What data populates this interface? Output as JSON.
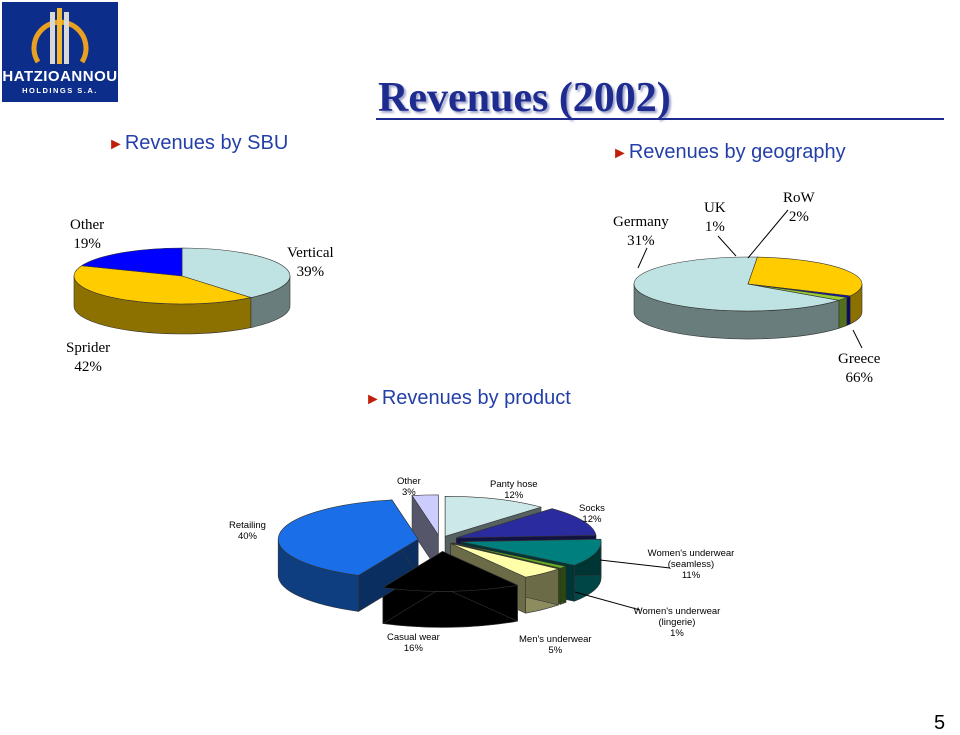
{
  "page": {
    "title": "Revenues (2002)",
    "page_number": "5",
    "logo": {
      "line1": "HATZIOANNOU",
      "line2": "HOLDINGS S.A."
    }
  },
  "sections": {
    "sbu": "Revenues by SBU",
    "geography": "Revenues by geography",
    "product": "Revenues by product"
  },
  "colors": {
    "accent_title": "#1f2c8f",
    "section_text": "#2440a8",
    "bullet": "#c0200a"
  },
  "chart_data": [
    {
      "type": "pie",
      "id": "sbu",
      "slices": [
        {
          "label": "Vertical",
          "value": 39,
          "pct_text": "39%",
          "color": "#bfe3e3"
        },
        {
          "label": "Sprider",
          "value": 42,
          "pct_text": "42%",
          "color": "#ffcc00"
        },
        {
          "label": "Other",
          "value": 19,
          "pct_text": "19%",
          "color": "#0000ff"
        }
      ]
    },
    {
      "type": "pie",
      "id": "geography",
      "slices": [
        {
          "label": "Greece",
          "value": 66,
          "pct_text": "66%",
          "color": "#bfe3e3"
        },
        {
          "label": "Germany",
          "value": 31,
          "pct_text": "31%",
          "color": "#ffcc00"
        },
        {
          "label": "UK",
          "value": 1,
          "pct_text": "1%",
          "color": "#1010c0"
        },
        {
          "label": "RoW",
          "value": 2,
          "pct_text": "2%",
          "color": "#99cc33"
        }
      ]
    },
    {
      "type": "pie",
      "id": "product",
      "slices": [
        {
          "label": "Panty hose",
          "value": 12,
          "pct_text": "12%",
          "color": "#cce8e8"
        },
        {
          "label": "Socks",
          "value": 12,
          "pct_text": "12%",
          "color": "#2b2ba0"
        },
        {
          "label": "Women's underwear (seamless)",
          "value": 11,
          "pct_text": "11%",
          "color": "#007f7f"
        },
        {
          "label": "Women's underwear (lingerie)",
          "value": 1,
          "pct_text": "1%",
          "color": "#66aa22"
        },
        {
          "label": "Men's underwear",
          "value": 5,
          "pct_text": "5%",
          "color": "#ffffaa"
        },
        {
          "label": "Casual wear",
          "value": 16,
          "pct_text": "16%",
          "color": "#000000"
        },
        {
          "label": "Retailing",
          "value": 40,
          "pct_text": "40%",
          "color": "#1a6ee8"
        },
        {
          "label": "Other",
          "value": 3,
          "pct_text": "3%",
          "color": "#ccccff"
        }
      ]
    }
  ]
}
